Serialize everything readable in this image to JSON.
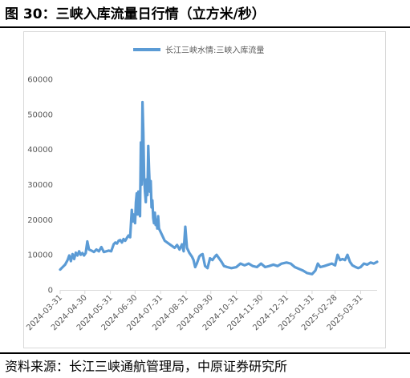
{
  "figure": {
    "title": "图 30：三峡入库流量日行情（立方米/秒）",
    "source": "资料来源：长江三峡通航管理局，中原证券研究所"
  },
  "chart_data": {
    "type": "line",
    "legend": {
      "position": "top",
      "label": "长江三峡水情:三峡入库流量"
    },
    "series": [
      {
        "name": "长江三峡水情:三峡入库流量",
        "color": "#5b9bd5",
        "points": [
          [
            "2024-03-31",
            5800
          ],
          [
            "2024-04-03",
            6500
          ],
          [
            "2024-04-06",
            7200
          ],
          [
            "2024-04-09",
            8500
          ],
          [
            "2024-04-11",
            9800
          ],
          [
            "2024-04-13",
            8200
          ],
          [
            "2024-04-15",
            10200
          ],
          [
            "2024-04-17",
            8800
          ],
          [
            "2024-04-19",
            10600
          ],
          [
            "2024-04-21",
            9800
          ],
          [
            "2024-04-23",
            11000
          ],
          [
            "2024-04-25",
            10000
          ],
          [
            "2024-04-27",
            10500
          ],
          [
            "2024-04-29",
            9800
          ],
          [
            "2024-05-01",
            10500
          ],
          [
            "2024-05-03",
            13800
          ],
          [
            "2024-05-05",
            11500
          ],
          [
            "2024-05-08",
            11200
          ],
          [
            "2024-05-11",
            10800
          ],
          [
            "2024-05-14",
            11500
          ],
          [
            "2024-05-17",
            11000
          ],
          [
            "2024-05-20",
            12200
          ],
          [
            "2024-05-23",
            10800
          ],
          [
            "2024-05-26",
            11000
          ],
          [
            "2024-05-29",
            11200
          ],
          [
            "2024-06-01",
            11000
          ],
          [
            "2024-06-04",
            13000
          ],
          [
            "2024-06-06",
            13500
          ],
          [
            "2024-06-08",
            13200
          ],
          [
            "2024-06-10",
            14000
          ],
          [
            "2024-06-12",
            14200
          ],
          [
            "2024-06-14",
            13500
          ],
          [
            "2024-06-16",
            14500
          ],
          [
            "2024-06-18",
            14000
          ],
          [
            "2024-06-20",
            14800
          ],
          [
            "2024-06-22",
            15500
          ],
          [
            "2024-06-24",
            15000
          ],
          [
            "2024-06-26",
            22800
          ],
          [
            "2024-06-27",
            19500
          ],
          [
            "2024-06-28",
            21500
          ],
          [
            "2024-06-30",
            19000
          ],
          [
            "2024-07-01",
            25000
          ],
          [
            "2024-07-02",
            27500
          ],
          [
            "2024-07-03",
            21500
          ],
          [
            "2024-07-04",
            28000
          ],
          [
            "2024-07-05",
            22000
          ],
          [
            "2024-07-06",
            21000
          ],
          [
            "2024-07-07",
            42000
          ],
          [
            "2024-07-08",
            30000
          ],
          [
            "2024-07-09",
            53500
          ],
          [
            "2024-07-10",
            45000
          ],
          [
            "2024-07-11",
            32000
          ],
          [
            "2024-07-12",
            28000
          ],
          [
            "2024-07-13",
            25000
          ],
          [
            "2024-07-14",
            31500
          ],
          [
            "2024-07-15",
            27000
          ],
          [
            "2024-07-16",
            41000
          ],
          [
            "2024-07-17",
            34000
          ],
          [
            "2024-07-18",
            28000
          ],
          [
            "2024-07-19",
            31000
          ],
          [
            "2024-07-20",
            23500
          ],
          [
            "2024-07-21",
            25500
          ],
          [
            "2024-07-22",
            20500
          ],
          [
            "2024-07-23",
            19000
          ],
          [
            "2024-07-24",
            22000
          ],
          [
            "2024-07-25",
            18500
          ],
          [
            "2024-07-26",
            20000
          ],
          [
            "2024-07-27",
            17500
          ],
          [
            "2024-07-28",
            21000
          ],
          [
            "2024-07-29",
            17500
          ],
          [
            "2024-07-31",
            16500
          ],
          [
            "2024-08-02",
            15500
          ],
          [
            "2024-08-05",
            14000
          ],
          [
            "2024-08-08",
            13500
          ],
          [
            "2024-08-11",
            13000
          ],
          [
            "2024-08-14",
            12500
          ],
          [
            "2024-08-17",
            12000
          ],
          [
            "2024-08-20",
            12800
          ],
          [
            "2024-08-23",
            11500
          ],
          [
            "2024-08-26",
            13000
          ],
          [
            "2024-08-28",
            11000
          ],
          [
            "2024-08-30",
            18000
          ],
          [
            "2024-09-01",
            12000
          ],
          [
            "2024-09-04",
            10500
          ],
          [
            "2024-09-07",
            9500
          ],
          [
            "2024-09-09",
            8500
          ],
          [
            "2024-09-11",
            6500
          ],
          [
            "2024-09-13",
            7500
          ],
          [
            "2024-09-16",
            9500
          ],
          [
            "2024-09-18",
            10000
          ],
          [
            "2024-09-20",
            10200
          ],
          [
            "2024-09-23",
            6800
          ],
          [
            "2024-09-26",
            6200
          ],
          [
            "2024-09-29",
            9000
          ],
          [
            "2024-10-02",
            8500
          ],
          [
            "2024-10-05",
            9500
          ],
          [
            "2024-10-07",
            10000
          ],
          [
            "2024-10-10",
            9000
          ],
          [
            "2024-10-13",
            8000
          ],
          [
            "2024-10-16",
            6800
          ],
          [
            "2024-10-20",
            6500
          ],
          [
            "2024-10-25",
            6200
          ],
          [
            "2024-10-31",
            6500
          ],
          [
            "2024-11-05",
            7500
          ],
          [
            "2024-11-10",
            7000
          ],
          [
            "2024-11-15",
            7500
          ],
          [
            "2024-11-20",
            6800
          ],
          [
            "2024-11-25",
            6500
          ],
          [
            "2024-11-30",
            7500
          ],
          [
            "2024-12-05",
            6500
          ],
          [
            "2024-12-10",
            6800
          ],
          [
            "2024-12-15",
            7200
          ],
          [
            "2024-12-20",
            6800
          ],
          [
            "2024-12-25",
            7500
          ],
          [
            "2024-12-31",
            7800
          ],
          [
            "2025-01-05",
            7500
          ],
          [
            "2025-01-10",
            6500
          ],
          [
            "2025-01-15",
            6000
          ],
          [
            "2025-01-20",
            5500
          ],
          [
            "2025-01-25",
            4800
          ],
          [
            "2025-01-31",
            4500
          ],
          [
            "2025-02-04",
            5500
          ],
          [
            "2025-02-07",
            7500
          ],
          [
            "2025-02-10",
            6500
          ],
          [
            "2025-02-15",
            6800
          ],
          [
            "2025-02-20",
            7200
          ],
          [
            "2025-02-24",
            7500
          ],
          [
            "2025-02-28",
            7000
          ],
          [
            "2025-03-03",
            10000
          ],
          [
            "2025-03-06",
            8500
          ],
          [
            "2025-03-09",
            8800
          ],
          [
            "2025-03-12",
            8500
          ],
          [
            "2025-03-15",
            10000
          ],
          [
            "2025-03-18",
            8000
          ],
          [
            "2025-03-21",
            7000
          ],
          [
            "2025-03-25",
            6500
          ],
          [
            "2025-03-28",
            6200
          ],
          [
            "2025-03-31",
            6500
          ],
          [
            "2025-04-04",
            7500
          ],
          [
            "2025-04-08",
            7200
          ],
          [
            "2025-04-12",
            7800
          ],
          [
            "2025-04-16",
            7500
          ],
          [
            "2025-04-20",
            8000
          ]
        ]
      }
    ],
    "x_axis": {
      "type": "date",
      "range": [
        "2024-03-31",
        "2025-04-20"
      ],
      "ticks": [
        "2024-03-31",
        "2024-04-30",
        "2024-05-31",
        "2024-06-30",
        "2024-07-31",
        "2024-08-31",
        "2024-09-30",
        "2024-10-31",
        "2024-11-30",
        "2024-12-31",
        "2025-01-31",
        "2025-02-28",
        "2025-03-31"
      ]
    },
    "y_axis": {
      "range": [
        0,
        60000
      ],
      "ticks": [
        0,
        10000,
        20000,
        30000,
        40000,
        50000,
        60000
      ],
      "tick_labels": [
        "0",
        "10000",
        "20000",
        "30000",
        "40000",
        "50000",
        "60000"
      ]
    },
    "grid": false
  }
}
